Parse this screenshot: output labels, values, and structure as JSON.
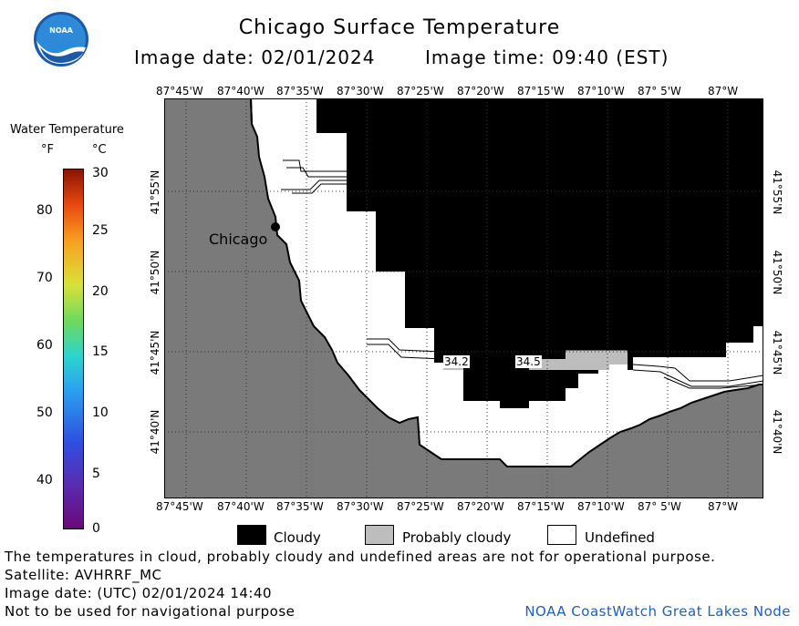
{
  "header": {
    "title": "Chicago Surface Temperature",
    "image_date": "Image date: 02/01/2024",
    "image_time": "Image time: 09:40 (EST)",
    "logo_text": "NOAA"
  },
  "map": {
    "lon_ticks": [
      "87°45'W",
      "87°40'W",
      "87°35'W",
      "87°30'W",
      "87°25'W",
      "87°20'W",
      "87°15'W",
      "87°10'W",
      "87° 5'W",
      "87°W"
    ],
    "lat_ticks": [
      "41°55'N",
      "41°50'N",
      "41°45'N",
      "41°40'N"
    ],
    "city_label": "Chicago",
    "temp_labels": [
      "34.2",
      "34.5"
    ]
  },
  "colorbar": {
    "title": "Water Temperature",
    "unit_f": "°F",
    "unit_c": "°C",
    "f_ticks": [
      "80",
      "70",
      "60",
      "50",
      "40"
    ],
    "c_ticks": [
      "30",
      "25",
      "20",
      "15",
      "10",
      "5",
      "0"
    ]
  },
  "legend": {
    "cloudy": "Cloudy",
    "probably_cloudy": "Probably cloudy",
    "undefined": "Undefined"
  },
  "colors": {
    "land": "#7a7a7a",
    "cloud": "#000000",
    "probably_cloudy": "#bdbdbd",
    "undefined": "#ffffff",
    "credit": "#1f5fbf"
  },
  "footer": {
    "disclaimer": "The temperatures in cloud, probably cloudy and undefined areas are not for operational purpose.",
    "satellite": "Satellite: AVHRRF_MC",
    "image_date_utc": "Image date: (UTC) 02/01/2024   14:40",
    "navigation": "Not to be used for navigational purpose",
    "credit": "NOAA CoastWatch Great Lakes Node"
  }
}
